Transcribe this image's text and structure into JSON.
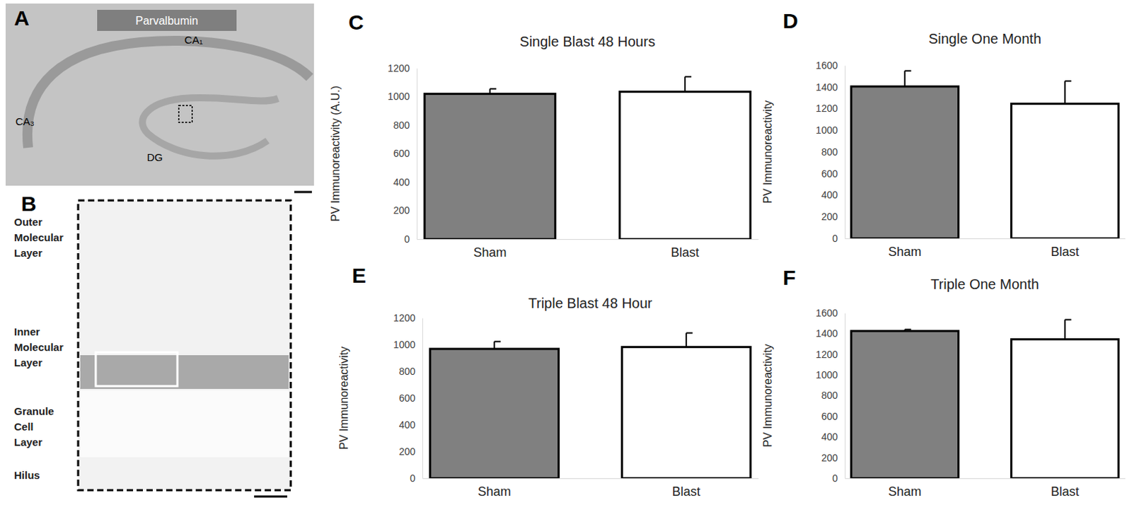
{
  "image_panels": [
    {
      "panel": "A",
      "labels": [
        "Parvalbumin",
        "CA₁",
        "CA₃",
        "DG"
      ]
    },
    {
      "panel": "B",
      "labels": [
        "Outer Molecular Layer",
        "Inner Molecular Layer",
        "Granule Cell Layer",
        "Hilus"
      ]
    }
  ],
  "chart_data": [
    {
      "panel": "C",
      "type": "bar",
      "title": "Single Blast 48 Hours",
      "y_label": "PV Immunoreactivity (A.U.)",
      "categories": [
        "Sham",
        "Blast"
      ],
      "values": [
        1020,
        1035
      ],
      "errors": [
        35,
        105
      ],
      "colors": [
        "#808080",
        "#ffffff"
      ],
      "ylim": [
        0,
        1200
      ],
      "yticks": [
        0,
        200,
        400,
        600,
        800,
        1000,
        1200
      ]
    },
    {
      "panel": "D",
      "type": "bar",
      "title": "Single One Month",
      "y_label": "PV Immunoreactivity",
      "categories": [
        "Sham",
        "Blast"
      ],
      "values": [
        1405,
        1245
      ],
      "errors": [
        145,
        210
      ],
      "colors": [
        "#808080",
        "#ffffff"
      ],
      "ylim": [
        0,
        1600
      ],
      "yticks": [
        0,
        200,
        400,
        600,
        800,
        1000,
        1200,
        1400,
        1600
      ]
    },
    {
      "panel": "E",
      "type": "bar",
      "title": "Triple Blast 48 Hour",
      "y_label": "PV Immunoreactivity",
      "categories": [
        "Sham",
        "Blast"
      ],
      "values": [
        968,
        982
      ],
      "errors": [
        55,
        105
      ],
      "colors": [
        "#808080",
        "#ffffff"
      ],
      "ylim": [
        0,
        1200
      ],
      "yticks": [
        0,
        200,
        400,
        600,
        800,
        1000,
        1200
      ]
    },
    {
      "panel": "F",
      "type": "bar",
      "title": "Triple One Month",
      "y_label": "PV Immunoreactivity",
      "categories": [
        "Sham",
        "Blast"
      ],
      "values": [
        1425,
        1345
      ],
      "errors": [
        15,
        190
      ],
      "colors": [
        "#808080",
        "#ffffff"
      ],
      "ylim": [
        0,
        1600
      ],
      "yticks": [
        0,
        200,
        400,
        600,
        800,
        1000,
        1200,
        1400,
        1600
      ]
    }
  ]
}
